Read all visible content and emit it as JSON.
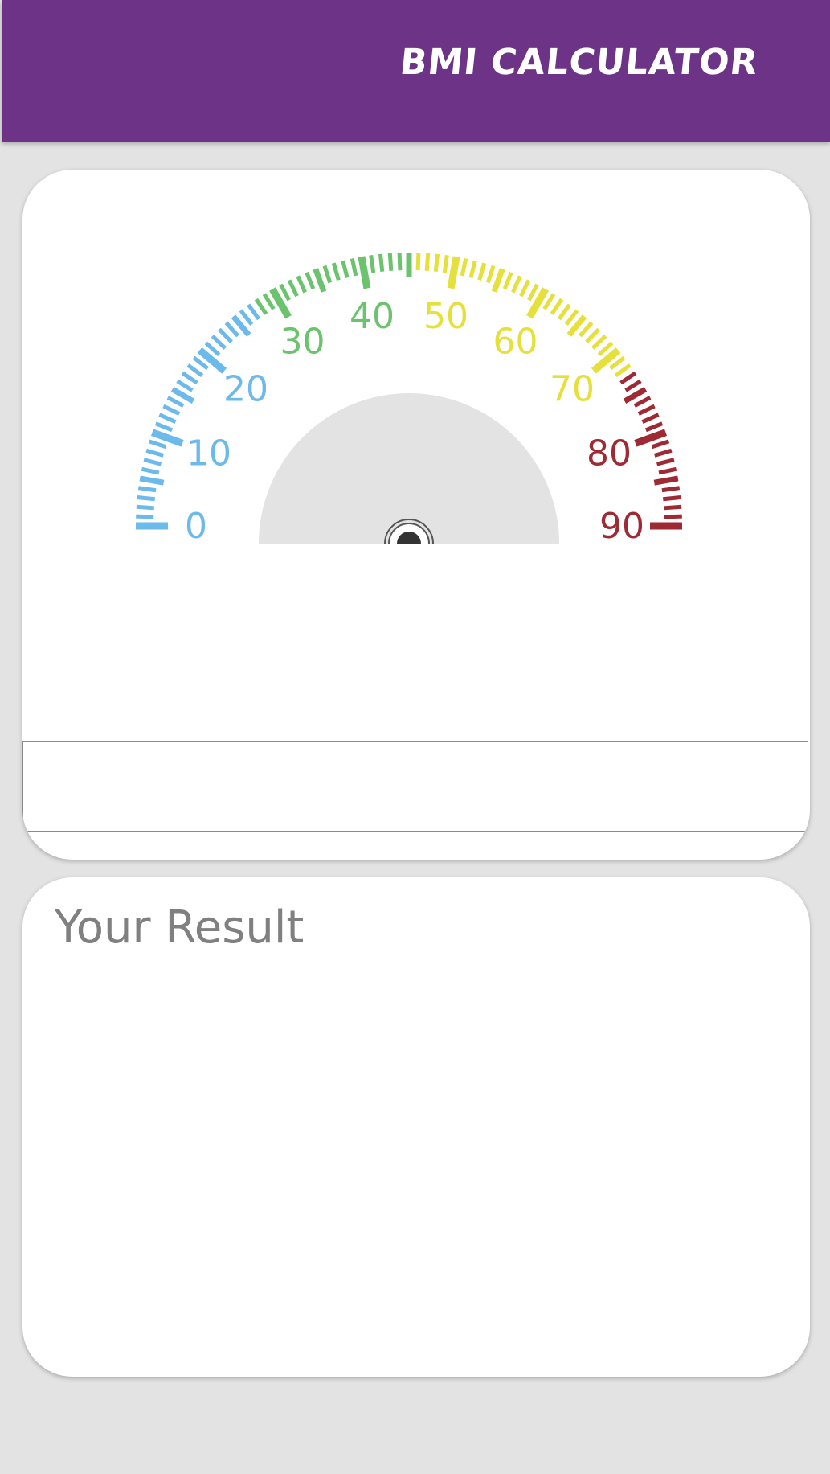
{
  "header": {
    "title": "BMI CALCULATOR"
  },
  "gauge": {
    "min": 0,
    "max": 90,
    "labels": [
      "0",
      "10",
      "20",
      "30",
      "40",
      "50",
      "60",
      "70",
      "80",
      "90"
    ],
    "zones": [
      {
        "from": 0,
        "to": 27,
        "color": "#6cb9ec"
      },
      {
        "from": 27,
        "to": 45,
        "color": "#6cc36e"
      },
      {
        "from": 45,
        "to": 72,
        "color": "#e5e03a"
      },
      {
        "from": 72,
        "to": 90,
        "color": "#9e2a34"
      }
    ],
    "dial_color": "#e3e3e3",
    "needle_color": "#333333"
  },
  "input": {
    "value": ""
  },
  "result": {
    "title": "Your Result"
  }
}
